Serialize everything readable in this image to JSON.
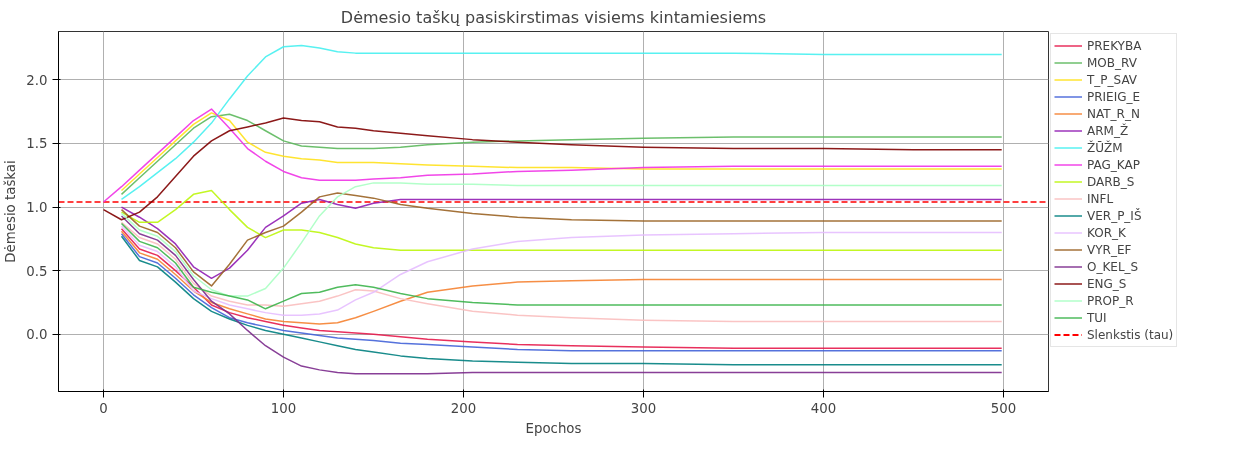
{
  "chart_data": {
    "type": "line",
    "title": "Dėmesio taškų pasiskirstimas visiems kintamiesiems",
    "xlabel": "Epochos",
    "ylabel": "Dėmesio taškai",
    "x": [
      0,
      10,
      20,
      30,
      40,
      50,
      60,
      70,
      80,
      90,
      100,
      110,
      120,
      130,
      140,
      150,
      165,
      180,
      205,
      230,
      260,
      300,
      350,
      400,
      450,
      499
    ],
    "xlim": [
      -25,
      525
    ],
    "ylim": [
      -0.45,
      2.38
    ],
    "xticks": [
      0,
      100,
      200,
      300,
      400,
      500
    ],
    "yticks": [
      {
        "value": 0,
        "label": "0.0"
      },
      {
        "value": 0.5,
        "label": "0.5"
      },
      {
        "value": 1,
        "label": "1.0"
      },
      {
        "value": 1.5,
        "label": "1.5"
      },
      {
        "value": 2,
        "label": "2.0"
      }
    ],
    "grid": true,
    "legend": "right",
    "marker": "none",
    "line_style": "solid",
    "series": [
      {
        "name": "PREKYBA",
        "color": "#e6194b",
        "values": [
          null,
          0.83,
          0.67,
          0.62,
          0.5,
          0.37,
          0.23,
          0.17,
          0.13,
          0.1,
          0.07,
          0.05,
          0.03,
          0.02,
          0.01,
          0.0,
          -0.02,
          -0.04,
          -0.06,
          -0.08,
          -0.09,
          -0.1,
          -0.11,
          -0.11,
          -0.11,
          -0.11
        ]
      },
      {
        "name": "MOB_RV",
        "color": "#5cb85c",
        "values": [
          null,
          1.1,
          1.23,
          1.36,
          1.49,
          1.62,
          1.71,
          1.73,
          1.68,
          1.6,
          1.52,
          1.48,
          1.47,
          1.46,
          1.46,
          1.46,
          1.47,
          1.49,
          1.51,
          1.52,
          1.53,
          1.54,
          1.55,
          1.55,
          1.55,
          1.55
        ]
      },
      {
        "name": "T_P_SAV",
        "color": "#ffe119",
        "values": [
          null,
          1.13,
          1.26,
          1.39,
          1.52,
          1.65,
          1.74,
          1.68,
          1.51,
          1.43,
          1.4,
          1.38,
          1.37,
          1.35,
          1.35,
          1.35,
          1.34,
          1.33,
          1.32,
          1.31,
          1.31,
          1.3,
          1.3,
          1.3,
          1.3,
          1.3
        ]
      },
      {
        "name": "PRIEIG_E",
        "color": "#4363d8",
        "values": [
          null,
          0.79,
          0.61,
          0.56,
          0.44,
          0.31,
          0.21,
          0.13,
          0.09,
          0.06,
          0.03,
          0.01,
          -0.01,
          -0.03,
          -0.04,
          -0.05,
          -0.07,
          -0.08,
          -0.1,
          -0.12,
          -0.13,
          -0.13,
          -0.13,
          -0.13,
          -0.13,
          -0.13
        ]
      },
      {
        "name": "NAT_R_N",
        "color": "#f58231",
        "values": [
          null,
          0.81,
          0.64,
          0.59,
          0.47,
          0.34,
          0.25,
          0.2,
          0.16,
          0.12,
          0.1,
          0.09,
          0.08,
          0.09,
          0.13,
          0.18,
          0.26,
          0.33,
          0.38,
          0.41,
          0.42,
          0.43,
          0.43,
          0.43,
          0.43,
          0.43
        ]
      },
      {
        "name": "ARM_Ž",
        "color": "#911eb4",
        "values": [
          null,
          1.0,
          0.92,
          0.83,
          0.71,
          0.53,
          0.44,
          0.52,
          0.66,
          0.84,
          0.93,
          1.03,
          1.06,
          1.02,
          0.99,
          1.03,
          1.06,
          1.06,
          1.06,
          1.06,
          1.06,
          1.06,
          1.06,
          1.06,
          1.06,
          1.06
        ]
      },
      {
        "name": "ŽŪŽM",
        "color": "#46f0f0",
        "values": [
          null,
          1.06,
          1.16,
          1.27,
          1.38,
          1.51,
          1.66,
          1.85,
          2.03,
          2.18,
          2.26,
          2.27,
          2.25,
          2.22,
          2.21,
          2.21,
          2.21,
          2.21,
          2.21,
          2.21,
          2.21,
          2.21,
          2.21,
          2.2,
          2.2,
          2.2
        ]
      },
      {
        "name": "PAG_KAP",
        "color": "#f032e6",
        "values": [
          1.04,
          1.16,
          1.29,
          1.42,
          1.55,
          1.68,
          1.77,
          1.62,
          1.46,
          1.36,
          1.28,
          1.23,
          1.21,
          1.21,
          1.21,
          1.22,
          1.23,
          1.25,
          1.26,
          1.28,
          1.29,
          1.31,
          1.32,
          1.32,
          1.32,
          1.32
        ]
      },
      {
        "name": "DARB_S",
        "color": "#bcf60c",
        "values": [
          null,
          0.96,
          0.88,
          0.88,
          0.98,
          1.1,
          1.13,
          0.98,
          0.84,
          0.76,
          0.82,
          0.82,
          0.8,
          0.76,
          0.71,
          0.68,
          0.66,
          0.66,
          0.66,
          0.66,
          0.66,
          0.66,
          0.66,
          0.66,
          0.66,
          0.66
        ]
      },
      {
        "name": "INFL",
        "color": "#fabebe",
        "values": [
          null,
          0.88,
          0.76,
          0.71,
          0.59,
          0.4,
          0.3,
          0.26,
          0.23,
          0.23,
          0.22,
          0.24,
          0.26,
          0.3,
          0.35,
          0.34,
          0.28,
          0.24,
          0.18,
          0.15,
          0.13,
          0.11,
          0.1,
          0.1,
          0.1,
          0.1
        ]
      },
      {
        "name": "VER_P_IŠ",
        "color": "#008080",
        "values": [
          null,
          0.77,
          0.58,
          0.53,
          0.41,
          0.28,
          0.18,
          0.12,
          0.07,
          0.03,
          0.0,
          -0.03,
          -0.06,
          -0.09,
          -0.12,
          -0.14,
          -0.17,
          -0.19,
          -0.21,
          -0.22,
          -0.23,
          -0.23,
          -0.24,
          -0.24,
          -0.24,
          -0.24
        ]
      },
      {
        "name": "KOR_K",
        "color": "#e6beff",
        "values": [
          null,
          0.85,
          0.7,
          0.65,
          0.53,
          0.34,
          0.28,
          0.23,
          0.2,
          0.17,
          0.15,
          0.15,
          0.16,
          0.19,
          0.27,
          0.33,
          0.47,
          0.57,
          0.67,
          0.73,
          0.76,
          0.78,
          0.79,
          0.8,
          0.8,
          0.8
        ]
      },
      {
        "name": "VYR_EF",
        "color": "#9a6324",
        "values": [
          null,
          0.98,
          0.85,
          0.8,
          0.68,
          0.49,
          0.38,
          0.55,
          0.74,
          0.8,
          0.85,
          0.96,
          1.08,
          1.11,
          1.09,
          1.07,
          1.02,
          0.99,
          0.95,
          0.92,
          0.9,
          0.89,
          0.89,
          0.89,
          0.89,
          0.89
        ]
      },
      {
        "name": "O_KEL_S",
        "color": "#7b2a8c",
        "values": [
          null,
          0.93,
          0.79,
          0.74,
          0.62,
          0.43,
          0.26,
          0.16,
          0.03,
          -0.09,
          -0.18,
          -0.25,
          -0.28,
          -0.3,
          -0.31,
          -0.31,
          -0.31,
          -0.31,
          -0.3,
          -0.3,
          -0.3,
          -0.3,
          -0.3,
          -0.3,
          -0.3,
          -0.3
        ]
      },
      {
        "name": "ENG_S",
        "color": "#800000",
        "values": [
          0.98,
          0.9,
          0.96,
          1.08,
          1.24,
          1.4,
          1.52,
          1.6,
          1.63,
          1.66,
          1.7,
          1.68,
          1.67,
          1.63,
          1.62,
          1.6,
          1.58,
          1.56,
          1.53,
          1.51,
          1.49,
          1.47,
          1.46,
          1.46,
          1.45,
          1.45
        ]
      },
      {
        "name": "PROP_R",
        "color": "#aaffc3",
        "values": [
          null,
          0.95,
          0.82,
          0.77,
          0.65,
          0.46,
          0.35,
          0.3,
          0.3,
          0.36,
          0.52,
          0.72,
          0.93,
          1.08,
          1.16,
          1.19,
          1.19,
          1.18,
          1.18,
          1.17,
          1.17,
          1.17,
          1.17,
          1.17,
          1.17,
          1.17
        ]
      },
      {
        "name": "TUI",
        "color": "#3cb44b",
        "values": [
          null,
          0.87,
          0.73,
          0.68,
          0.56,
          0.37,
          0.33,
          0.3,
          0.27,
          0.2,
          0.26,
          0.32,
          0.33,
          0.37,
          0.39,
          0.37,
          0.32,
          0.28,
          0.25,
          0.23,
          0.23,
          0.23,
          0.23,
          0.23,
          0.23,
          0.23
        ]
      }
    ],
    "ref_lines": [
      {
        "axis": "y",
        "value": 1.04,
        "label": "Slenkstis (tau)",
        "color": "#ff0000",
        "line_style": "dashed"
      }
    ]
  }
}
